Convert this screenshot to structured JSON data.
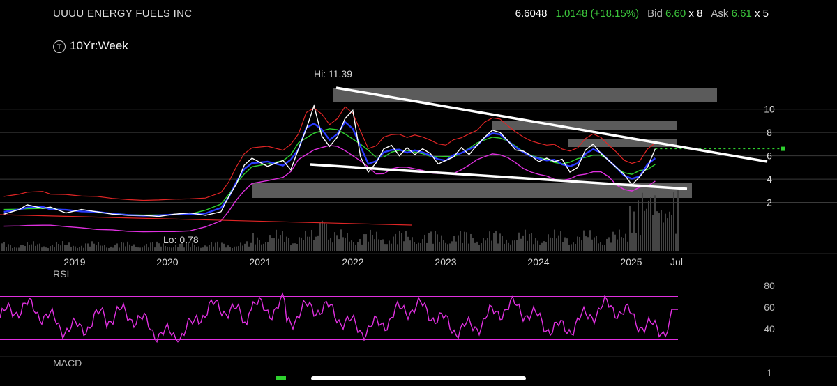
{
  "header": {
    "title": "UUUU ENERGY FUELS INC",
    "last": "6.6048",
    "change": "1.0148 (+18.15%)",
    "bid_label": "Bid",
    "bid_price": "6.60",
    "bid_size": "x 8",
    "ask_label": "Ask",
    "ask_price": "6.61",
    "ask_size": "x 5"
  },
  "timeframe": {
    "icon": "T",
    "label": "10Yr:Week"
  },
  "chart_data": {
    "type": "line",
    "x_ticks": [
      "2019",
      "2020",
      "2021",
      "2022",
      "2023",
      "2024",
      "2025",
      "Jul"
    ],
    "y_ticks": [
      "2",
      "4",
      "6",
      "8",
      "10"
    ],
    "annotations": {
      "high": "Hi: 11.39",
      "low": "Lo: 0.78"
    },
    "series": [
      {
        "values": [
          {
            "x": "2018-07",
            "y": 1.0
          },
          {
            "x": "2018-09",
            "y": 1.4
          },
          {
            "x": "2018-10",
            "y": 1.8
          },
          {
            "x": "2018-12",
            "y": 1.5
          },
          {
            "x": "2019-01",
            "y": 1.6
          },
          {
            "x": "2019-03",
            "y": 1.1
          },
          {
            "x": "2019-05",
            "y": 1.4
          },
          {
            "x": "2019-07",
            "y": 1.2
          },
          {
            "x": "2019-09",
            "y": 1.0
          },
          {
            "x": "2019-11",
            "y": 0.9
          },
          {
            "x": "2020-01",
            "y": 0.9
          },
          {
            "x": "2020-03",
            "y": 0.8
          },
          {
            "x": "2020-05",
            "y": 1.0
          },
          {
            "x": "2020-07",
            "y": 1.1
          },
          {
            "x": "2020-09",
            "y": 0.9
          },
          {
            "x": "2020-11",
            "y": 1.2
          },
          {
            "x": "2020-12",
            "y": 2.5
          },
          {
            "x": "2021-01",
            "y": 3.6
          },
          {
            "x": "2021-02",
            "y": 5.2
          },
          {
            "x": "2021-03",
            "y": 5.8
          },
          {
            "x": "2021-05",
            "y": 5.1
          },
          {
            "x": "2021-07",
            "y": 5.6
          },
          {
            "x": "2021-08",
            "y": 4.8
          },
          {
            "x": "2021-09",
            "y": 6.6
          },
          {
            "x": "2021-10",
            "y": 8.3
          },
          {
            "x": "2021-11",
            "y": 10.3
          },
          {
            "x": "2021-12",
            "y": 7.7
          },
          {
            "x": "2022-01",
            "y": 6.8
          },
          {
            "x": "2022-02",
            "y": 7.6
          },
          {
            "x": "2022-03",
            "y": 9.2
          },
          {
            "x": "2022-04",
            "y": 9.9
          },
          {
            "x": "2022-05",
            "y": 5.9
          },
          {
            "x": "2022-06",
            "y": 4.6
          },
          {
            "x": "2022-07",
            "y": 5.4
          },
          {
            "x": "2022-08",
            "y": 6.6
          },
          {
            "x": "2022-09",
            "y": 6.9
          },
          {
            "x": "2022-10",
            "y": 6.0
          },
          {
            "x": "2022-11",
            "y": 6.7
          },
          {
            "x": "2022-12",
            "y": 6.1
          },
          {
            "x": "2023-01",
            "y": 6.6
          },
          {
            "x": "2023-02",
            "y": 6.2
          },
          {
            "x": "2023-03",
            "y": 5.3
          },
          {
            "x": "2023-04",
            "y": 5.6
          },
          {
            "x": "2023-05",
            "y": 5.9
          },
          {
            "x": "2023-06",
            "y": 6.7
          },
          {
            "x": "2023-07",
            "y": 6.1
          },
          {
            "x": "2023-08",
            "y": 6.9
          },
          {
            "x": "2023-09",
            "y": 7.6
          },
          {
            "x": "2023-10",
            "y": 8.2
          },
          {
            "x": "2023-11",
            "y": 8.0
          },
          {
            "x": "2023-12",
            "y": 7.3
          },
          {
            "x": "2024-01",
            "y": 6.5
          },
          {
            "x": "2024-02",
            "y": 6.4
          },
          {
            "x": "2024-03",
            "y": 6.0
          },
          {
            "x": "2024-04",
            "y": 5.5
          },
          {
            "x": "2024-05",
            "y": 5.8
          },
          {
            "x": "2024-06",
            "y": 5.5
          },
          {
            "x": "2024-07",
            "y": 5.7
          },
          {
            "x": "2024-08",
            "y": 4.6
          },
          {
            "x": "2024-09",
            "y": 5.0
          },
          {
            "x": "2024-10",
            "y": 6.5
          },
          {
            "x": "2024-11",
            "y": 7.0
          },
          {
            "x": "2024-12",
            "y": 6.2
          },
          {
            "x": "2025-01",
            "y": 5.6
          },
          {
            "x": "2025-02",
            "y": 5.0
          },
          {
            "x": "2025-03",
            "y": 4.4
          },
          {
            "x": "2025-04",
            "y": 3.5
          },
          {
            "x": "2025-05",
            "y": 4.2
          },
          {
            "x": "2025-06",
            "y": 5.0
          },
          {
            "x": "2025-07",
            "y": 6.6
          }
        ]
      }
    ],
    "rsi": {
      "label": "RSI",
      "y_ticks": [
        "40",
        "60",
        "80"
      ],
      "upper": 70,
      "lower": 30
    },
    "macd": {
      "label": "MACD",
      "y_ticks": [
        "1"
      ]
    },
    "colors": {
      "price": "#ffffff",
      "ema_fast": "#2a3bff",
      "sma": "#2ed12e",
      "bollinger": "#e02525",
      "lower_band": "#e030e0",
      "rsi": "#e030e0",
      "trendline": "#ffffff",
      "zone": "#6b6b6b",
      "volume": "#444444",
      "last_marker": "#2ed12e"
    }
  }
}
